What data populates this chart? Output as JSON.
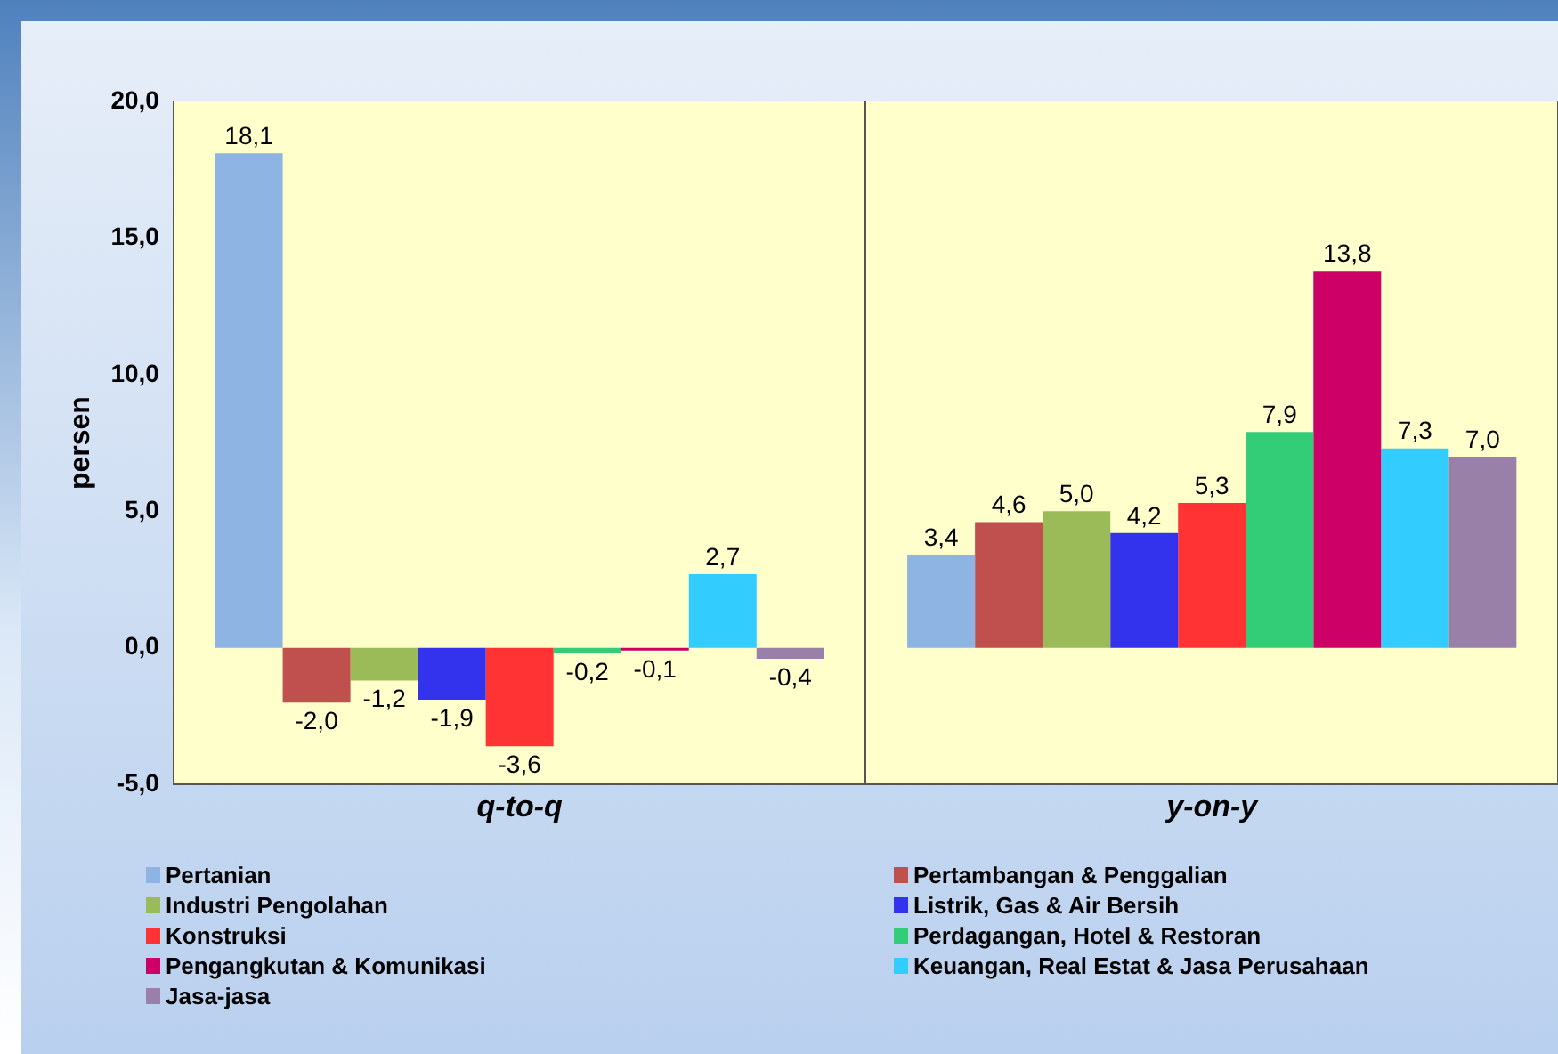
{
  "chart_data": {
    "type": "bar",
    "ylabel": "persen",
    "categories": [
      "q-to-q",
      "y-on-y"
    ],
    "series": [
      {
        "name": "Pertanian",
        "color": "#8db4e2",
        "values": [
          18.1,
          3.4
        ],
        "value_labels": [
          "18,1",
          "3,4"
        ]
      },
      {
        "name": "Pertambangan & Penggalian",
        "color": "#c0504d",
        "values": [
          -2.0,
          4.6
        ],
        "value_labels": [
          "-2,0",
          "4,6"
        ]
      },
      {
        "name": "Industri Pengolahan",
        "color": "#9bbb59",
        "values": [
          -1.2,
          5.0
        ],
        "value_labels": [
          "-1,2",
          "5,0"
        ]
      },
      {
        "name": "Listrik, Gas & Air Bersih",
        "color": "#3333ee",
        "values": [
          -1.9,
          4.2
        ],
        "value_labels": [
          "-1,9",
          "4,2"
        ]
      },
      {
        "name": "Konstruksi",
        "color": "#ff3333",
        "values": [
          -3.6,
          5.3
        ],
        "value_labels": [
          "-3,6",
          "5,3"
        ]
      },
      {
        "name": "Perdagangan, Hotel & Restoran",
        "color": "#33cc77",
        "values": [
          -0.2,
          7.9
        ],
        "value_labels": [
          "-0,2",
          "7,9"
        ]
      },
      {
        "name": "Pengangkutan & Komunikasi",
        "color": "#cc0066",
        "values": [
          -0.1,
          13.8
        ],
        "value_labels": [
          "-0,1",
          "13,8"
        ]
      },
      {
        "name": "Keuangan, Real Estat & Jasa Perusahaan",
        "color": "#33ccff",
        "values": [
          2.7,
          7.3
        ],
        "value_labels": [
          "2,7",
          "7,3"
        ]
      },
      {
        "name": "Jasa-jasa",
        "color": "#9980a8",
        "values": [
          -0.4,
          7.0
        ],
        "value_labels": [
          "-0,4",
          "7,0"
        ]
      }
    ],
    "ylim": [
      -5,
      20
    ],
    "yticks": [
      {
        "value": -5,
        "label": "-5,0"
      },
      {
        "value": 0,
        "label": "0,0"
      },
      {
        "value": 5,
        "label": "5,0"
      },
      {
        "value": 10,
        "label": "10,0"
      },
      {
        "value": 15,
        "label": "15,0"
      },
      {
        "value": 20,
        "label": "20,0"
      }
    ],
    "grid": "x",
    "legend": "bottom"
  }
}
